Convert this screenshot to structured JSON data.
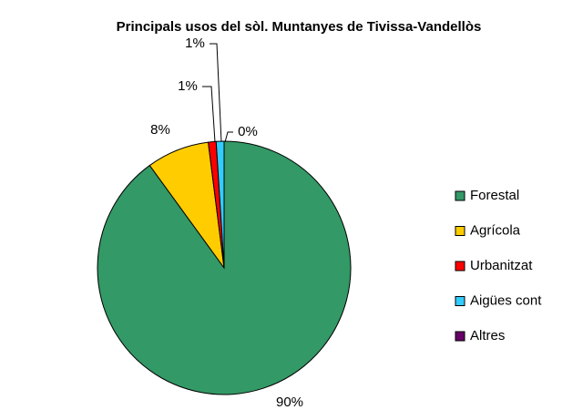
{
  "chart_data": {
    "type": "pie",
    "title": "Principals usos del sòl. Muntanyes de Tivissa-Vandellòs",
    "categories": [
      "Forestal",
      "Agrícola",
      "Urbanitzat",
      "Aigües cont",
      "Altres"
    ],
    "values": [
      90,
      8,
      1,
      1,
      0
    ],
    "value_labels": [
      "90%",
      "8%",
      "1%",
      "1%",
      "0%"
    ],
    "colors": [
      "#339966",
      "#ffcc00",
      "#ff0000",
      "#33ccff",
      "#660066"
    ],
    "legend": "right"
  }
}
